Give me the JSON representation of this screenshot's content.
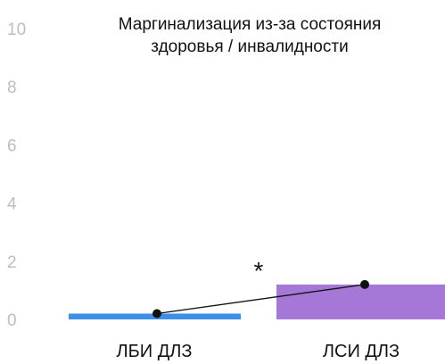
{
  "chart_data": {
    "type": "bar",
    "title_lines": [
      "Маргинализация из-за состояния",
      "здоровья / инвалидности"
    ],
    "categories": [
      "ЛБИ ДЛЗ",
      "ЛСИ ДЛЗ"
    ],
    "values": [
      0.2,
      1.2
    ],
    "ylim": [
      0,
      10
    ],
    "yticks": [
      0,
      2,
      4,
      6,
      8,
      10
    ],
    "grid": false,
    "legend": "none",
    "annotation": "*",
    "colors": {
      "bar_1": "#3f8fe8",
      "bar_2": "#a578d8",
      "line": "#111111",
      "tick_label": "#bdbdbd"
    }
  }
}
